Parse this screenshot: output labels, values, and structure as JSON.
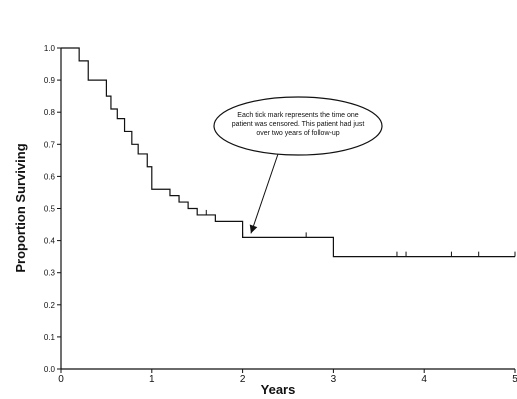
{
  "chart_data": {
    "type": "line",
    "xlabel": "Years",
    "ylabel": "Proportion Surviving",
    "xlim": [
      0,
      5
    ],
    "ylim": [
      0,
      1.0
    ],
    "x_ticks": [
      "0",
      "1",
      "2",
      "3",
      "4",
      "5"
    ],
    "y_ticks": [
      "0.0",
      "0.1",
      "0.2",
      "0.3",
      "0.4",
      "0.5",
      "0.6",
      "0.7",
      "0.8",
      "0.9",
      "1.0"
    ],
    "grid": false,
    "series": [
      {
        "x": [
          0,
          0.2,
          0.3,
          0.5,
          0.55,
          0.62,
          0.7,
          0.78,
          0.85,
          0.95,
          1.0,
          1.2,
          1.3,
          1.4,
          1.5,
          1.7,
          2.0,
          3.0,
          5.0
        ],
        "y": [
          1.0,
          0.96,
          0.9,
          0.85,
          0.81,
          0.78,
          0.74,
          0.7,
          0.67,
          0.63,
          0.56,
          0.54,
          0.52,
          0.5,
          0.48,
          0.46,
          0.41,
          0.35,
          0.35
        ],
        "censored_x": [
          1.3,
          1.6,
          2.0,
          2.7,
          3.7,
          3.8,
          4.3,
          4.6,
          5.0
        ]
      }
    ],
    "annotation": {
      "lines": [
        "Each tick mark represents the time one",
        "patient was censored. This patient had just",
        "over two years of follow-up"
      ],
      "target": {
        "x": 2.07,
        "y": 0.41
      }
    }
  }
}
